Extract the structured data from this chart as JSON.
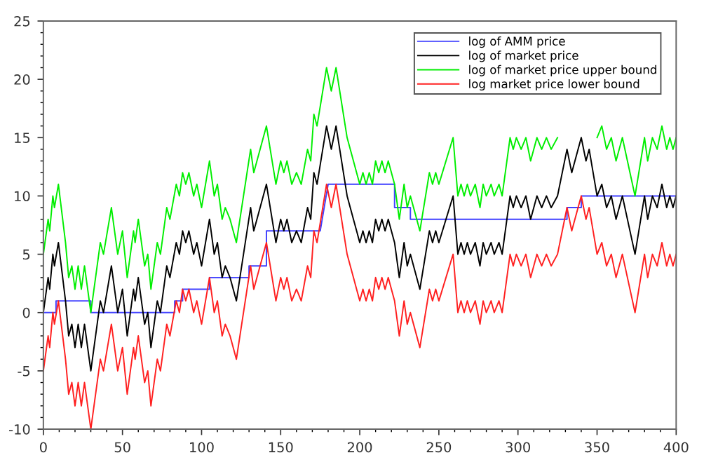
{
  "chart_data": {
    "type": "line",
    "xlim": [
      0,
      400
    ],
    "ylim": [
      -10,
      25
    ],
    "xticks": [
      0,
      50,
      100,
      150,
      200,
      250,
      300,
      350,
      400
    ],
    "yticks": [
      -10,
      -5,
      0,
      5,
      10,
      15,
      20,
      25
    ],
    "grid": false,
    "legend": "top right",
    "marker": "none",
    "line_style": "solid",
    "series": [
      {
        "name": "log of AMM price",
        "color": "#4040ff",
        "x": [
          0,
          8,
          8,
          30,
          30,
          83,
          83,
          88,
          88,
          105,
          105,
          130,
          130,
          141,
          141,
          175,
          180,
          222,
          222,
          232,
          232,
          331,
          331,
          340,
          340,
          400
        ],
        "values": [
          0,
          0,
          1,
          1,
          0,
          0,
          1,
          1,
          2,
          2,
          3,
          3,
          4,
          4,
          7,
          7,
          11,
          11,
          9,
          9,
          8,
          8,
          9,
          9,
          10,
          10
        ]
      },
      {
        "name": "log of market price",
        "color": "#000000",
        "x": [
          0,
          3,
          4,
          6,
          7,
          9.5,
          14,
          16,
          18,
          20,
          22,
          24,
          26,
          30,
          36,
          38,
          43,
          47,
          50,
          53,
          57,
          58,
          60,
          64,
          66,
          68,
          72,
          74,
          78,
          80,
          84,
          86,
          88,
          90,
          92,
          95,
          97,
          100,
          105,
          108,
          110,
          113,
          115,
          118,
          122,
          131,
          133,
          135,
          141,
          147,
          150,
          152,
          154,
          157,
          160,
          163,
          167,
          169,
          171,
          173,
          179,
          182,
          185,
          192,
          196,
          198,
          200,
          202,
          204,
          206,
          208,
          210,
          212,
          214,
          216,
          218,
          222,
          225,
          228,
          230,
          232,
          234,
          238,
          244,
          246,
          248,
          250,
          259,
          262,
          264,
          266,
          268,
          270,
          273,
          276,
          278,
          280,
          283,
          285,
          288,
          290,
          295,
          297,
          299,
          302,
          305,
          308,
          312,
          315,
          318,
          321,
          325,
          331,
          334,
          340,
          343,
          345,
          350,
          353,
          356,
          359,
          362,
          366,
          374,
          380,
          382,
          385,
          388,
          391,
          394,
          396,
          398,
          400
        ],
        "values": [
          0,
          3,
          2,
          5,
          4,
          6,
          1,
          -2,
          -1,
          -3,
          -1,
          -3,
          -1,
          -5,
          1,
          0,
          4,
          0,
          2,
          -2,
          2,
          1,
          3,
          -1,
          0,
          -3,
          1,
          0,
          4,
          3,
          6,
          5,
          7,
          6,
          7,
          5,
          6,
          4,
          8,
          5,
          6,
          3,
          4,
          3,
          1,
          9,
          7,
          8,
          11,
          6,
          8,
          7,
          8,
          6,
          7,
          6,
          9,
          8,
          12,
          11,
          16,
          14,
          16,
          10,
          8,
          7,
          6,
          7,
          6,
          7,
          6,
          8,
          7,
          8,
          7,
          8,
          6,
          3,
          6,
          4,
          5,
          4,
          2,
          7,
          6,
          7,
          6,
          10,
          5,
          6,
          5,
          6,
          5,
          6,
          4,
          6,
          5,
          6,
          5,
          6,
          5,
          10,
          9,
          10,
          9,
          10,
          8,
          10,
          9,
          10,
          9,
          10,
          14,
          12,
          15,
          13,
          14,
          10,
          11,
          9,
          10,
          8,
          10,
          5,
          10,
          8,
          10,
          9,
          11,
          9,
          10,
          9,
          10
        ]
      },
      {
        "name": "log of market price upper bound",
        "color": "#00ee00",
        "x": [
          0,
          3,
          4,
          6,
          7,
          9.5,
          14,
          16,
          18,
          20,
          22,
          24,
          26,
          30,
          36,
          38,
          43,
          47,
          50,
          53,
          57,
          58,
          60,
          64,
          66,
          68,
          72,
          74,
          78,
          80,
          84,
          86,
          88,
          90,
          92,
          95,
          97,
          100,
          105,
          108,
          110,
          113,
          115,
          118,
          122,
          131,
          133,
          135,
          141,
          147,
          150,
          152,
          154,
          157,
          160,
          163,
          167,
          169,
          171,
          173,
          179,
          182,
          185,
          192,
          196,
          198,
          200,
          202,
          204,
          206,
          208,
          210,
          212,
          214,
          216,
          218,
          222,
          225,
          228,
          230,
          232,
          234,
          238,
          244,
          246,
          248,
          250,
          259,
          262,
          264,
          266,
          268,
          270,
          273,
          276,
          278,
          280,
          283,
          285,
          288,
          290,
          295,
          297,
          299,
          302,
          305,
          308,
          312,
          315,
          318,
          321,
          325,
          331,
          334,
          340,
          343,
          345,
          350,
          353,
          356,
          359,
          362,
          366,
          374,
          380,
          382,
          385,
          388,
          391,
          394,
          396,
          398,
          400
        ],
        "values": [
          5,
          8,
          7,
          10,
          9,
          11,
          6,
          3,
          4,
          2,
          4,
          2,
          4,
          0,
          6,
          5,
          9,
          5,
          7,
          3,
          7,
          6,
          8,
          4,
          5,
          2,
          6,
          5,
          9,
          8,
          11,
          10,
          12,
          11,
          12,
          10,
          11,
          9,
          13,
          10,
          11,
          8,
          9,
          8,
          6,
          14,
          12,
          13,
          16,
          11,
          13,
          12,
          13,
          11,
          12,
          11,
          14,
          13,
          17,
          16,
          21,
          19,
          21,
          15,
          13,
          12,
          11,
          12,
          11,
          12,
          11,
          13,
          12,
          13,
          12,
          13,
          11,
          8,
          11,
          9,
          10,
          9,
          7,
          12,
          11,
          12,
          11,
          15,
          10,
          11,
          10,
          11,
          10,
          11,
          9,
          11,
          10,
          11,
          10,
          11,
          10,
          15,
          14,
          15,
          14,
          15,
          13,
          15,
          14,
          15,
          14,
          15,
          null,
          null,
          null,
          null,
          null,
          15,
          16,
          14,
          15,
          13,
          15,
          10,
          15,
          13,
          15,
          14,
          16,
          14,
          15,
          14,
          15
        ]
      },
      {
        "name": "log market price lower bound",
        "color": "#ff2020",
        "x": [
          0,
          3,
          4,
          6,
          7,
          9.5,
          14,
          16,
          18,
          20,
          22,
          24,
          26,
          30,
          36,
          38,
          43,
          47,
          50,
          53,
          57,
          58,
          60,
          64,
          66,
          68,
          72,
          74,
          78,
          80,
          84,
          86,
          88,
          90,
          92,
          95,
          97,
          100,
          105,
          108,
          110,
          113,
          115,
          118,
          122,
          131,
          133,
          135,
          141,
          147,
          150,
          152,
          154,
          157,
          160,
          163,
          167,
          169,
          171,
          173,
          179,
          182,
          185,
          192,
          196,
          198,
          200,
          202,
          204,
          206,
          208,
          210,
          212,
          214,
          216,
          218,
          222,
          225,
          228,
          230,
          232,
          234,
          238,
          244,
          246,
          248,
          250,
          259,
          262,
          264,
          266,
          268,
          270,
          273,
          276,
          278,
          280,
          283,
          285,
          288,
          290,
          295,
          297,
          299,
          302,
          305,
          308,
          312,
          315,
          318,
          321,
          325,
          331,
          334,
          340,
          343,
          345,
          350,
          353,
          356,
          359,
          362,
          366,
          374,
          380,
          382,
          385,
          388,
          391,
          394,
          396,
          398,
          400
        ],
        "values": [
          -5,
          -2,
          -3,
          0,
          -1,
          1,
          -4,
          -7,
          -6,
          -8,
          -6,
          -8,
          -6,
          -10,
          -4,
          -5,
          -1,
          -5,
          -3,
          -7,
          -3,
          -4,
          -2,
          -6,
          -5,
          -8,
          -4,
          -5,
          -1,
          -2,
          1,
          0,
          2,
          1,
          2,
          0,
          1,
          -1,
          3,
          0,
          1,
          -2,
          -1,
          -2,
          -4,
          4,
          2,
          3,
          6,
          1,
          3,
          2,
          3,
          1,
          2,
          1,
          4,
          3,
          7,
          6,
          11,
          9,
          11,
          5,
          3,
          2,
          1,
          2,
          1,
          2,
          1,
          3,
          2,
          3,
          2,
          3,
          1,
          -2,
          1,
          -1,
          0,
          -1,
          -3,
          2,
          1,
          2,
          1,
          5,
          0,
          1,
          0,
          1,
          0,
          1,
          -1,
          1,
          0,
          1,
          0,
          1,
          0,
          5,
          4,
          5,
          4,
          5,
          3,
          5,
          4,
          5,
          4,
          5,
          9,
          7,
          10,
          8,
          9,
          5,
          6,
          4,
          5,
          3,
          5,
          0,
          5,
          3,
          5,
          4,
          6,
          4,
          5,
          4,
          5
        ]
      }
    ]
  }
}
